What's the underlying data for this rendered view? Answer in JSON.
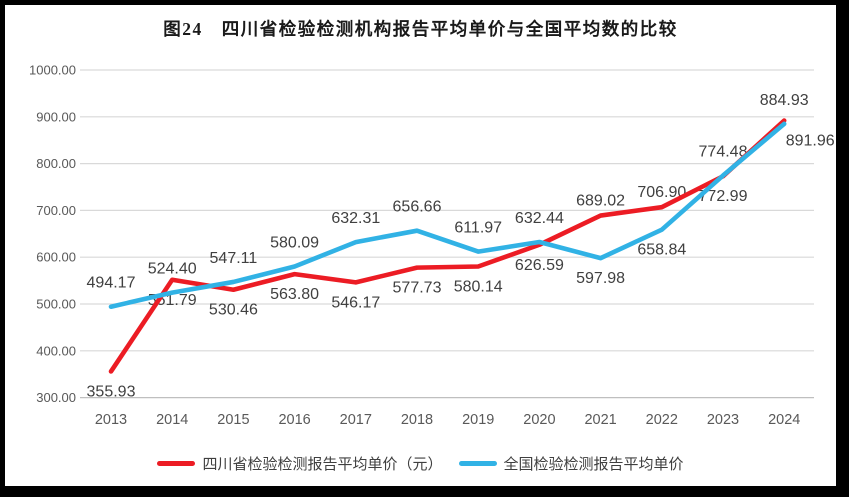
{
  "title": "图24　四川省检验检测机构报告平均单价与全国平均数的比较",
  "chart_data": {
    "type": "line",
    "title": "图24　四川省检验检测机构报告平均单价与全国平均数的比较",
    "categories": [
      "2013",
      "2014",
      "2015",
      "2016",
      "2017",
      "2018",
      "2019",
      "2020",
      "2021",
      "2022",
      "2023",
      "2024"
    ],
    "series": [
      {
        "id": "sichuan",
        "name": "四川省检验检测报告平均单价（元）",
        "color": "#ec1c24",
        "values": [
          355.93,
          551.79,
          530.46,
          563.8,
          546.17,
          577.73,
          580.14,
          626.59,
          689.02,
          706.9,
          772.99,
          891.96
        ],
        "label_side": [
          "below",
          "below",
          "below",
          "below",
          "below",
          "below",
          "below",
          "below",
          "above",
          "above",
          "below",
          "below"
        ],
        "label_dx": [
          0,
          0,
          0,
          0,
          0,
          0,
          0,
          0,
          0,
          0,
          0,
          26
        ]
      },
      {
        "id": "national",
        "name": "全国检验检测报告平均单价",
        "color": "#31b2e5",
        "values": [
          494.17,
          524.4,
          547.11,
          580.09,
          632.31,
          656.66,
          611.97,
          632.44,
          597.98,
          658.84,
          774.48,
          884.93
        ],
        "label_side": [
          "above",
          "above",
          "above",
          "above",
          "above",
          "above",
          "above",
          "above",
          "below",
          "below",
          "above",
          "above"
        ],
        "label_dx": [
          0,
          0,
          0,
          0,
          0,
          0,
          0,
          0,
          0,
          0,
          0,
          0
        ]
      }
    ],
    "ylim": [
      300,
      1000
    ],
    "ytick_step": 100,
    "yticks": [
      "1000.00",
      "900.00",
      "800.00",
      "700.00",
      "600.00",
      "500.00",
      "400.00",
      "300.00"
    ],
    "grid": true,
    "vertical_grid": false,
    "legend_position": "bottom",
    "colors": {
      "gridline": "#d9d9d9",
      "axis_line": "#bfbfbf",
      "tick_text": "#595959",
      "data_label_text": "#404040",
      "frame": "#000000",
      "background": "#ffffff"
    }
  }
}
